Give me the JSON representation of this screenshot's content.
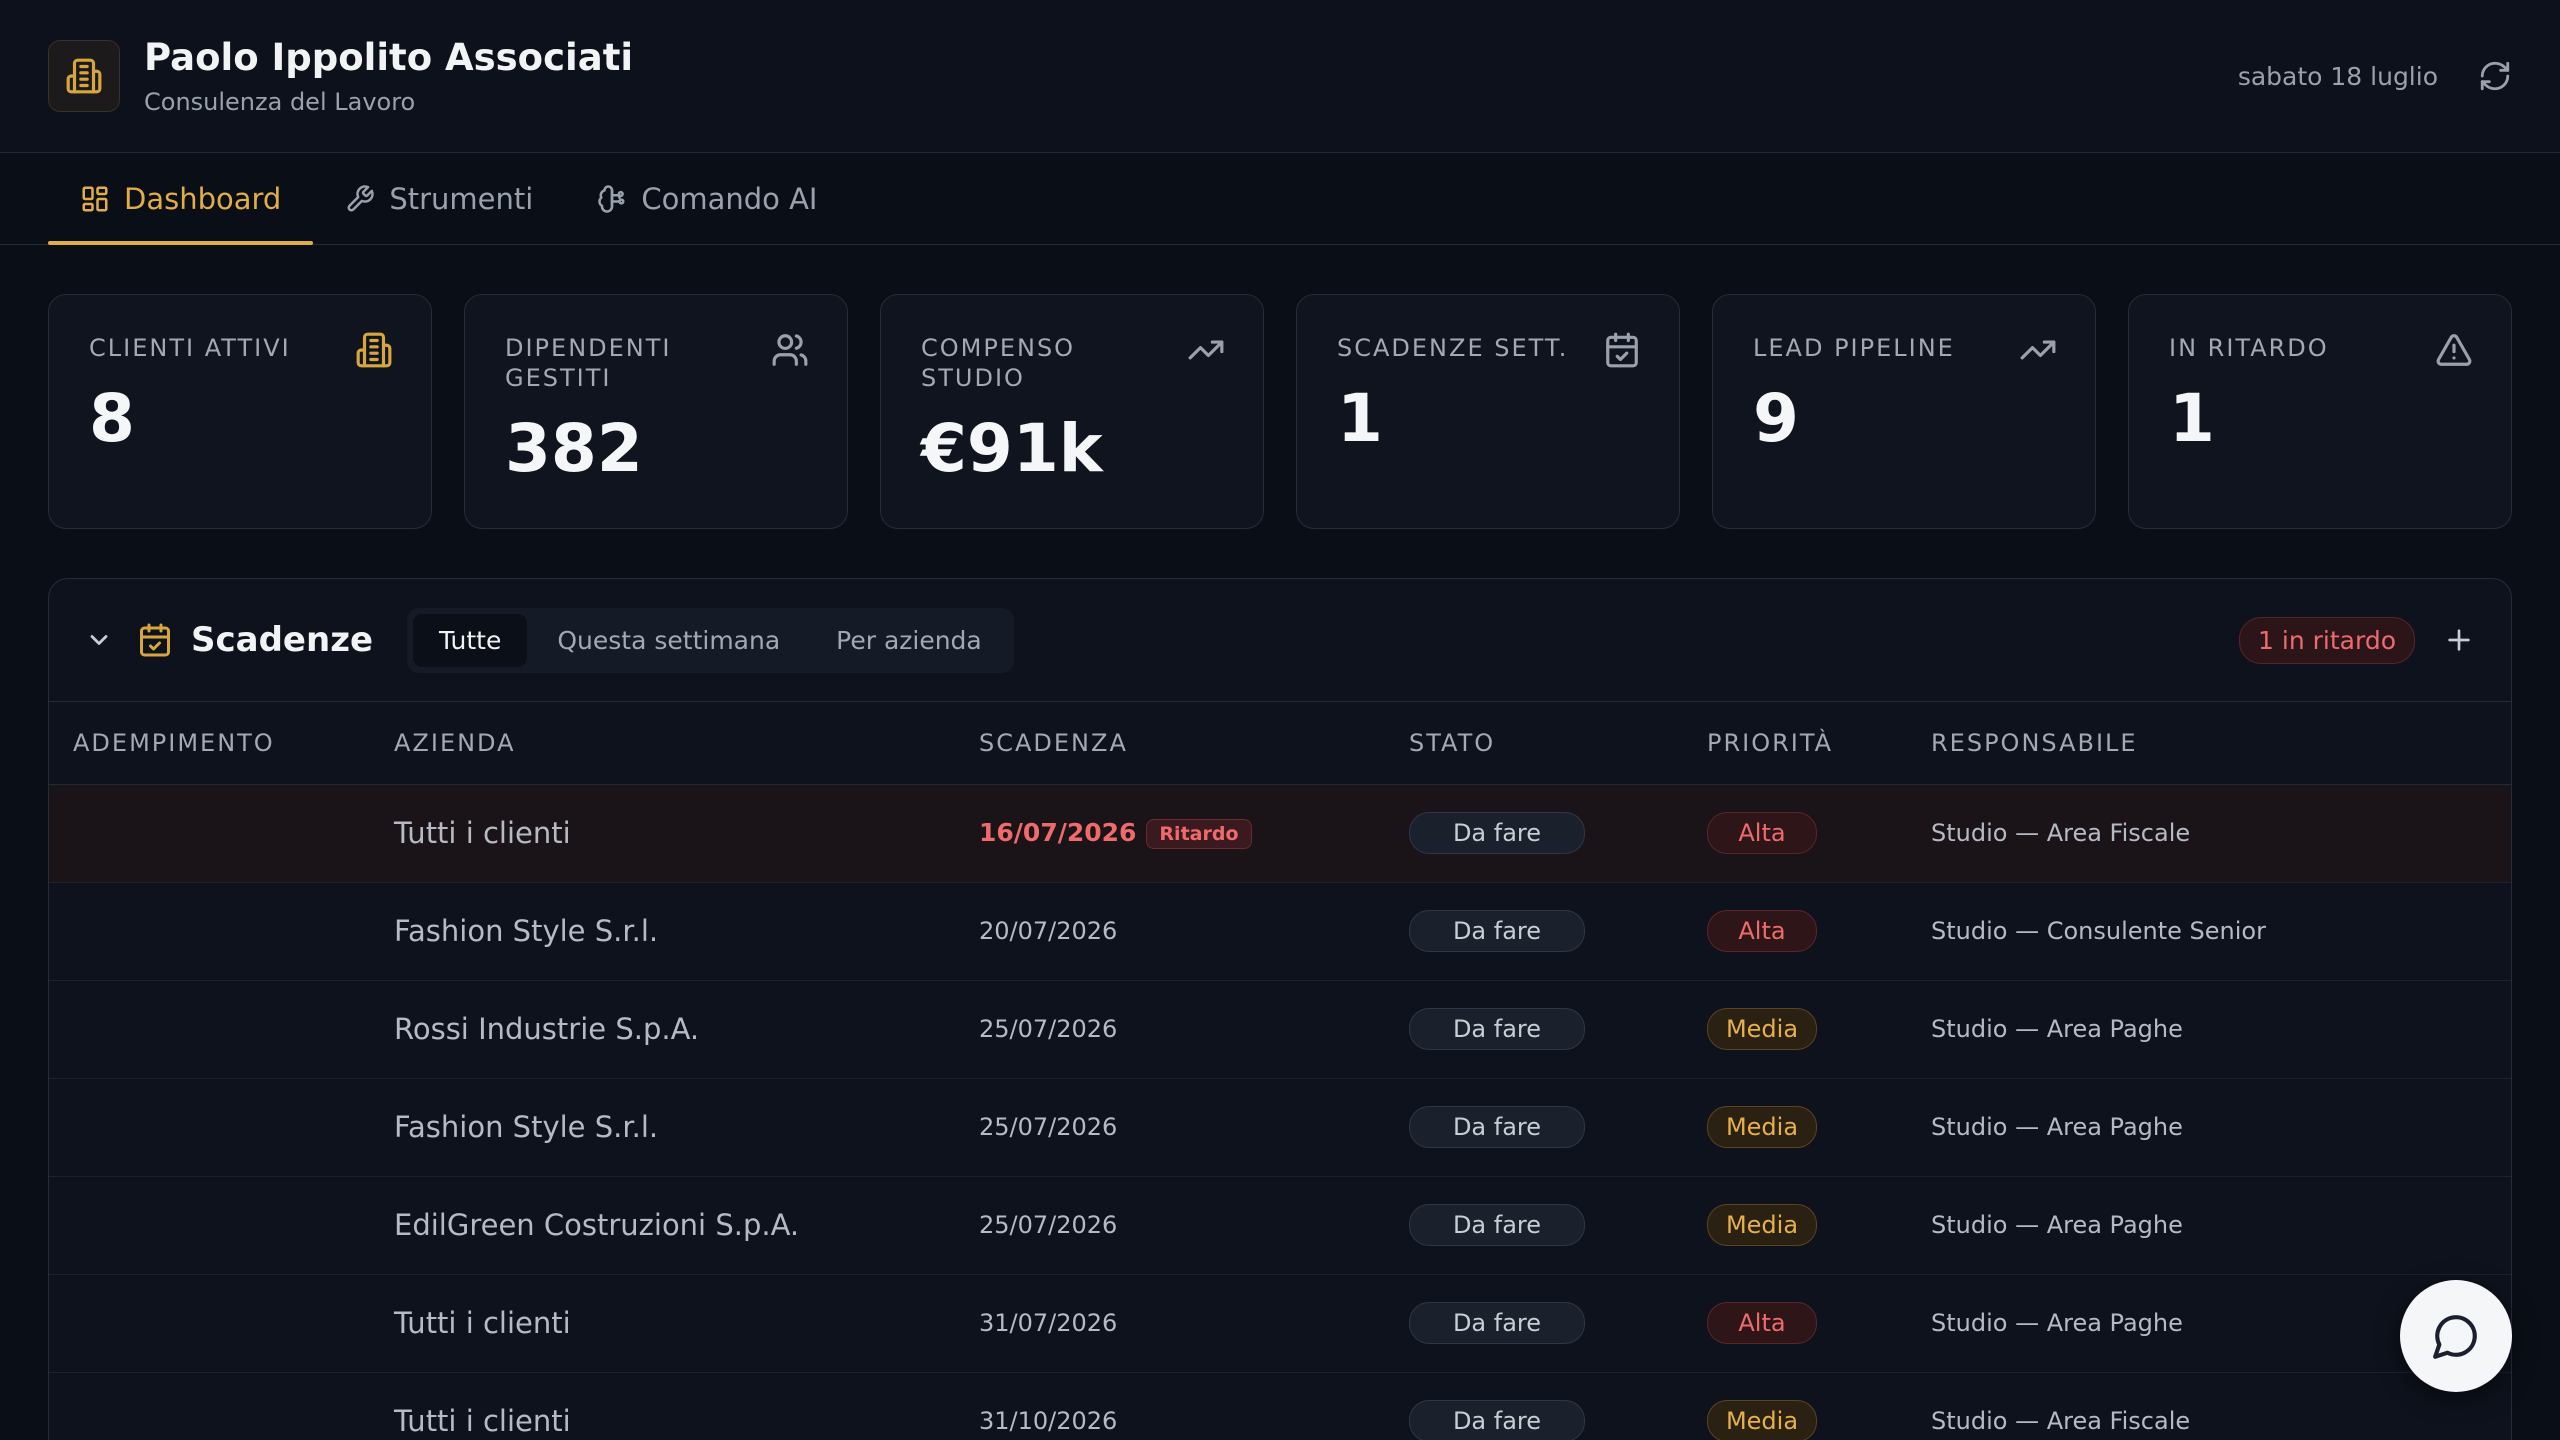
{
  "header": {
    "logo_icon": "building-icon",
    "title": "Paolo Ippolito Associati",
    "subtitle": "Consulenza del Lavoro",
    "date": "sabato 18 luglio",
    "refresh_icon": "refresh-icon"
  },
  "tabs": [
    {
      "label": "Dashboard",
      "icon": "grid-icon",
      "active": true
    },
    {
      "label": "Strumenti",
      "icon": "wrench-icon",
      "active": false
    },
    {
      "label": "Comando AI",
      "icon": "brain-icon",
      "active": false
    }
  ],
  "kpis": [
    {
      "label": "CLIENTI ATTIVI",
      "value": "8",
      "icon": "building-icon"
    },
    {
      "label": "DIPENDENTI GESTITI",
      "value": "382",
      "icon": "users-icon"
    },
    {
      "label": "COMPENSO STUDIO",
      "value": "€91k",
      "icon": "trending-up-icon"
    },
    {
      "label": "SCADENZE SETT.",
      "value": "1",
      "icon": "calendar-check-icon"
    },
    {
      "label": "LEAD PIPELINE",
      "value": "9",
      "icon": "trending-up-icon"
    },
    {
      "label": "IN RITARDO",
      "value": "1",
      "icon": "alert-triangle-icon"
    }
  ],
  "deadlines": {
    "title": "Scadenze",
    "filters": [
      "Tutte",
      "Questa settimana",
      "Per azienda"
    ],
    "active_filter": "Tutte",
    "late_badge": "1 in ritardo",
    "columns": [
      "ADEMPIMENTO",
      "AZIENDA",
      "SCADENZA",
      "STATO",
      "PRIORITÀ",
      "RESPONSABILE"
    ],
    "late_tag": "Ritardo",
    "rows": [
      {
        "adempimento": "",
        "azienda": "Tutti i clienti",
        "scadenza": "16/07/2026",
        "late": true,
        "stato": "Da fare",
        "priorita": "Alta",
        "responsabile": "Studio — Area Fiscale"
      },
      {
        "adempimento": "",
        "azienda": "Fashion Style S.r.l.",
        "scadenza": "20/07/2026",
        "late": false,
        "stato": "Da fare",
        "priorita": "Alta",
        "responsabile": "Studio — Consulente Senior"
      },
      {
        "adempimento": "",
        "azienda": "Rossi Industrie S.p.A.",
        "scadenza": "25/07/2026",
        "late": false,
        "stato": "Da fare",
        "priorita": "Media",
        "responsabile": "Studio — Area Paghe"
      },
      {
        "adempimento": "",
        "azienda": "Fashion Style S.r.l.",
        "scadenza": "25/07/2026",
        "late": false,
        "stato": "Da fare",
        "priorita": "Media",
        "responsabile": "Studio — Area Paghe"
      },
      {
        "adempimento": "",
        "azienda": "EdilGreen Costruzioni S.p.A.",
        "scadenza": "25/07/2026",
        "late": false,
        "stato": "Da fare",
        "priorita": "Media",
        "responsabile": "Studio — Area Paghe"
      },
      {
        "adempimento": "",
        "azienda": "Tutti i clienti",
        "scadenza": "31/07/2026",
        "late": false,
        "stato": "Da fare",
        "priorita": "Alta",
        "responsabile": "Studio — Area Paghe"
      },
      {
        "adempimento": "",
        "azienda": "Tutti i clienti",
        "scadenza": "31/10/2026",
        "late": false,
        "stato": "Da fare",
        "priorita": "Media",
        "responsabile": "Studio — Area Fiscale"
      }
    ]
  },
  "chat_fab_icon": "chat-bubble-icon",
  "colors": {
    "accent": "#e1ad47",
    "danger": "#ef6b6b",
    "background": "#0a0e16"
  }
}
